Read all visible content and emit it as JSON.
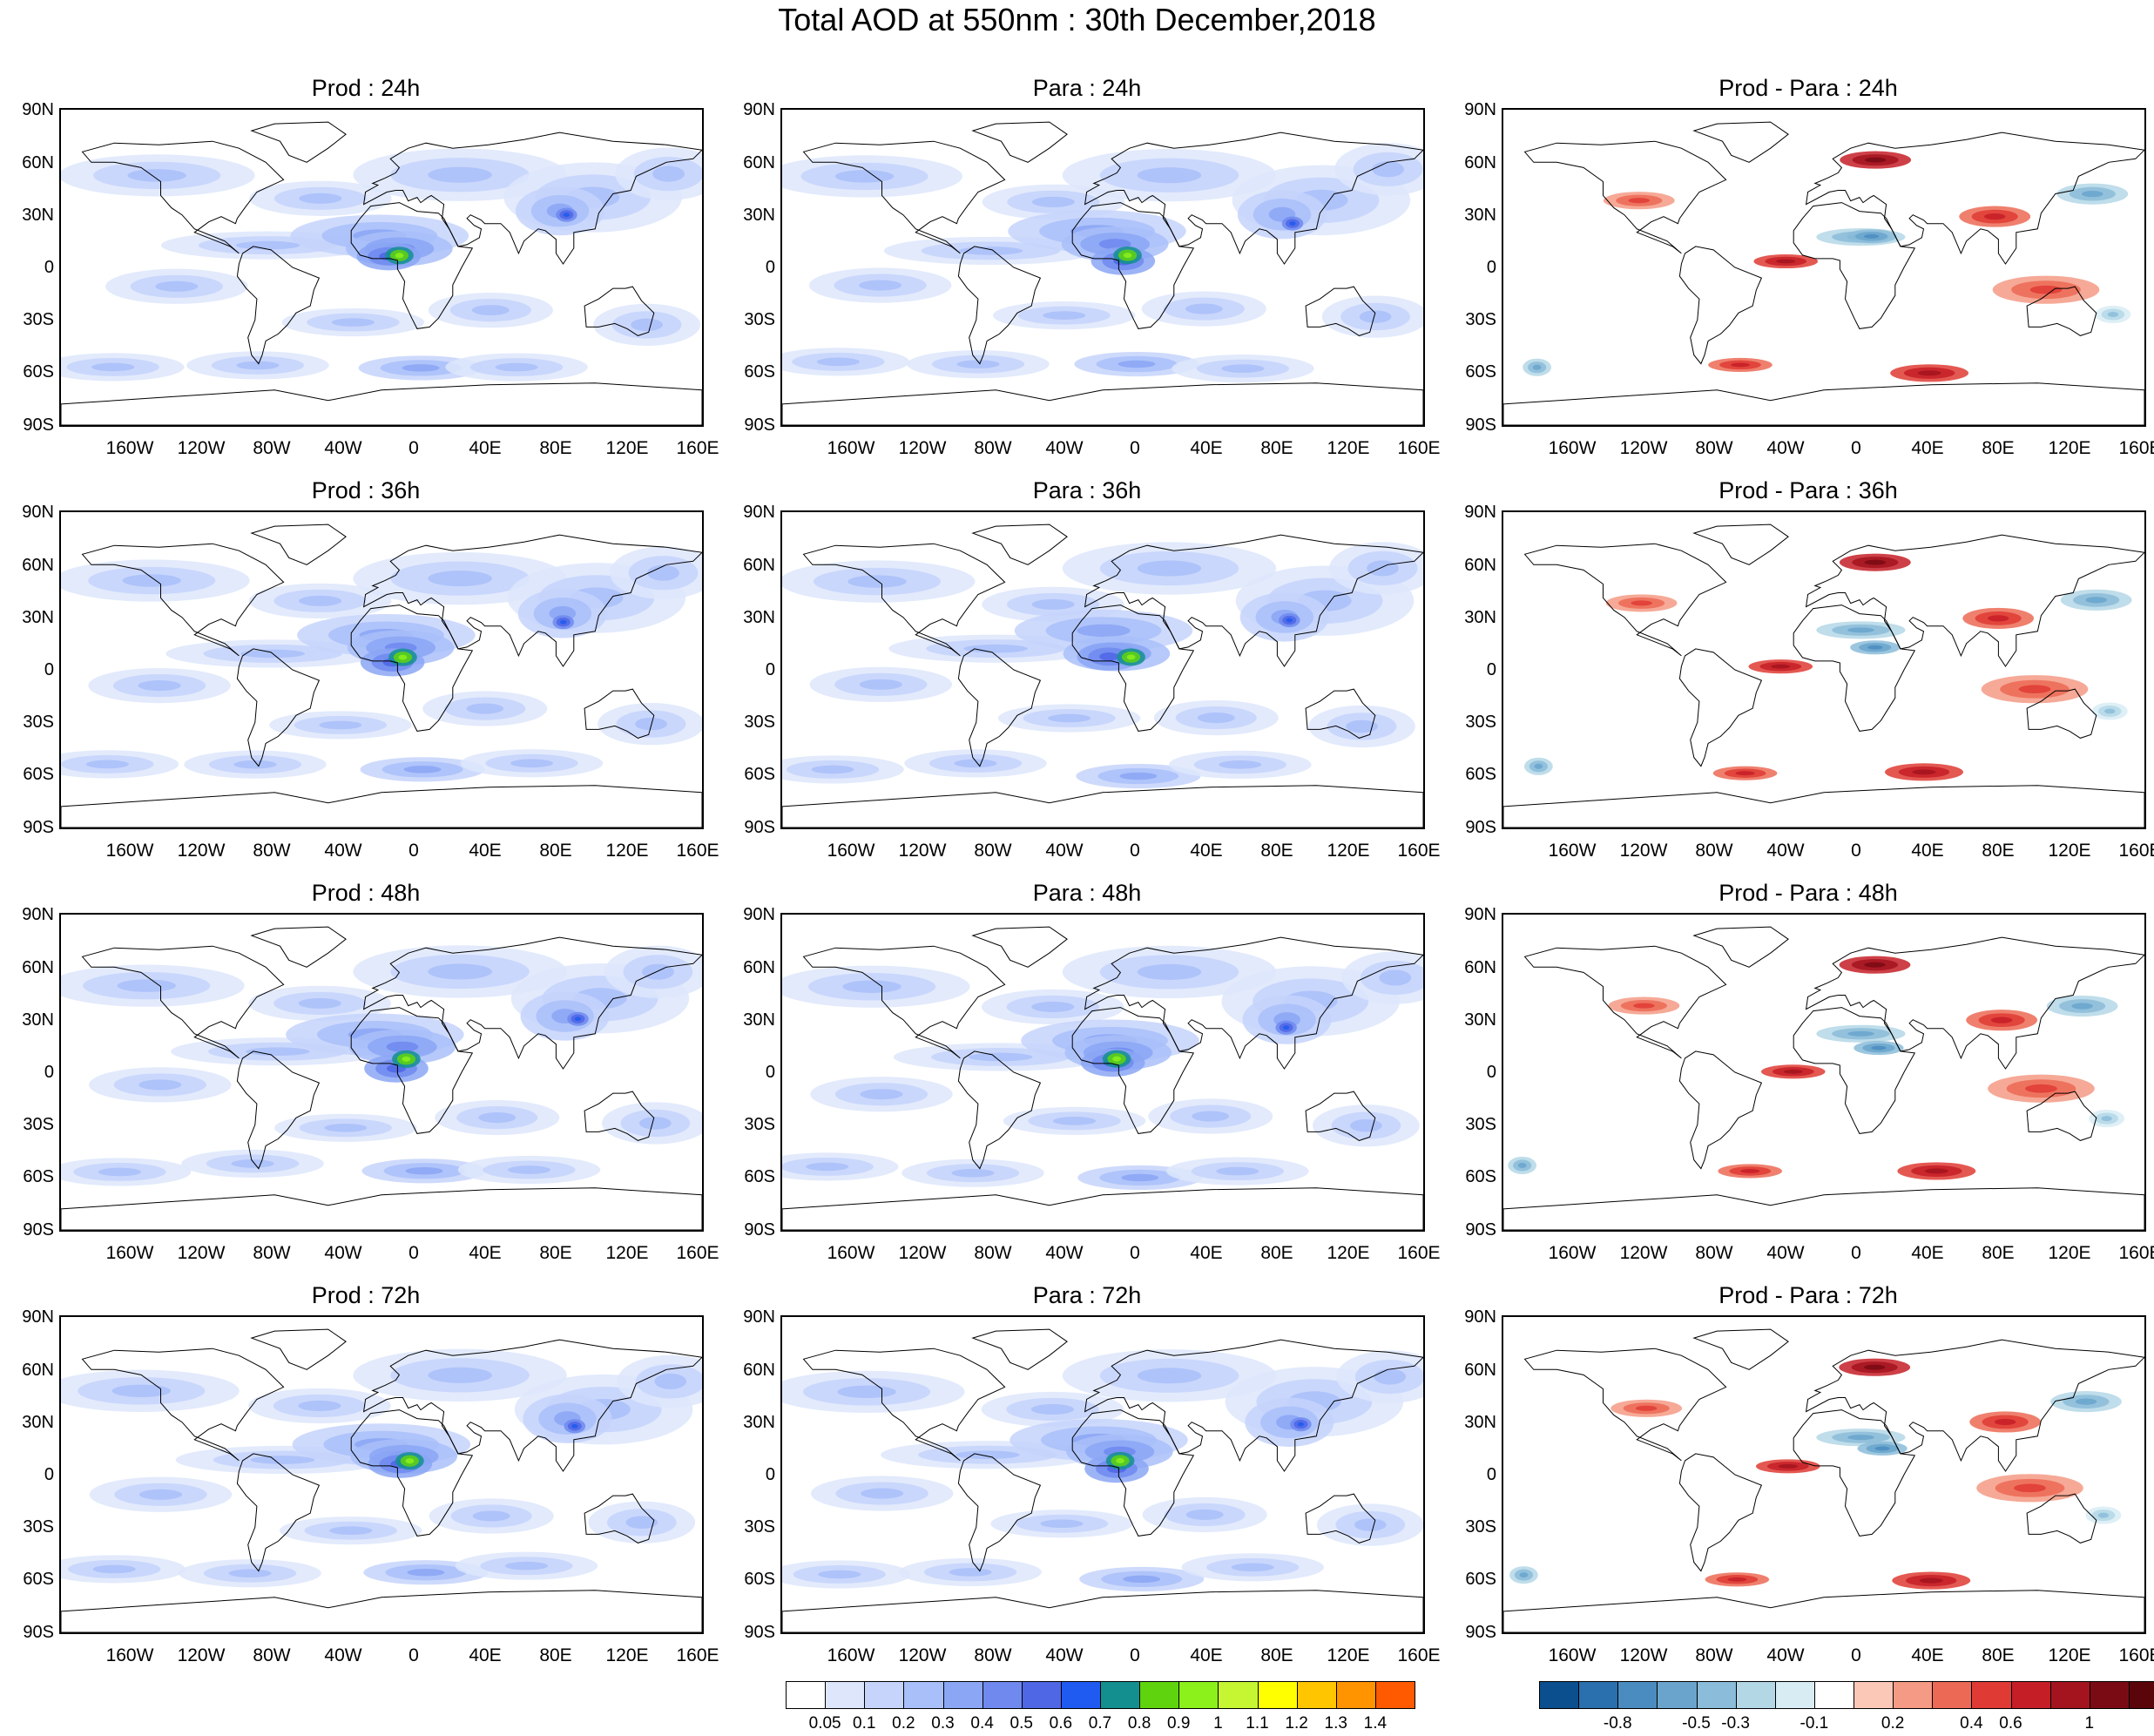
{
  "title": "Total AOD at 550nm : 30th December,2018",
  "lat_labels": [
    "90N",
    "60N",
    "30N",
    "0",
    "30S",
    "60S",
    "90S"
  ],
  "lon_labels": [
    "160W",
    "120W",
    "80W",
    "40W",
    "0",
    "40E",
    "80E",
    "120E",
    "160E"
  ],
  "panels": [
    {
      "title": "Prod : 24h",
      "kind": "aod",
      "hours": 24
    },
    {
      "title": "Para : 24h",
      "kind": "aod",
      "hours": 24
    },
    {
      "title": "Prod - Para : 24h",
      "kind": "diff",
      "hours": 24
    },
    {
      "title": "Prod : 36h",
      "kind": "aod",
      "hours": 36
    },
    {
      "title": "Para : 36h",
      "kind": "aod",
      "hours": 36
    },
    {
      "title": "Prod - Para : 36h",
      "kind": "diff",
      "hours": 36
    },
    {
      "title": "Prod : 48h",
      "kind": "aod",
      "hours": 48
    },
    {
      "title": "Para : 48h",
      "kind": "aod",
      "hours": 48
    },
    {
      "title": "Prod - Para : 48h",
      "kind": "diff",
      "hours": 48
    },
    {
      "title": "Prod : 72h",
      "kind": "aod",
      "hours": 72
    },
    {
      "title": "Para : 72h",
      "kind": "aod",
      "hours": 72
    },
    {
      "title": "Prod - Para : 72h",
      "kind": "diff",
      "hours": 72
    }
  ],
  "aod_colorbar": {
    "labels": [
      "0.05",
      "0.1",
      "0.2",
      "0.3",
      "0.4",
      "0.5",
      "0.6",
      "0.7",
      "0.8",
      "0.9",
      "1",
      "1.1",
      "1.2",
      "1.3",
      "1.4"
    ],
    "colors": [
      "#ffffff",
      "#dde6fb",
      "#c6d4fb",
      "#a9bff9",
      "#8ba6f5",
      "#6f89ef",
      "#4f66e5",
      "#1f5bf0",
      "#138f8f",
      "#5fd40e",
      "#8cf01a",
      "#c6f531",
      "#ffff00",
      "#ffc600",
      "#ff9400",
      "#ff5a00"
    ]
  },
  "diff_colorbar": {
    "labels": [
      "-0.8",
      "-0.5",
      "-0.3",
      "-0.1",
      "0.2",
      "0.4",
      "0.6",
      "1"
    ],
    "colors": [
      "#0b4f8f",
      "#2a6fae",
      "#4b8cc0",
      "#6aa4cd",
      "#8bbcd9",
      "#b4d7e6",
      "#d8ecf4",
      "#ffffff",
      "#fbc8b8",
      "#f59a85",
      "#ec6a55",
      "#df3b34",
      "#c51e27",
      "#a3141f",
      "#7a0b14",
      "#5a0509"
    ]
  }
}
